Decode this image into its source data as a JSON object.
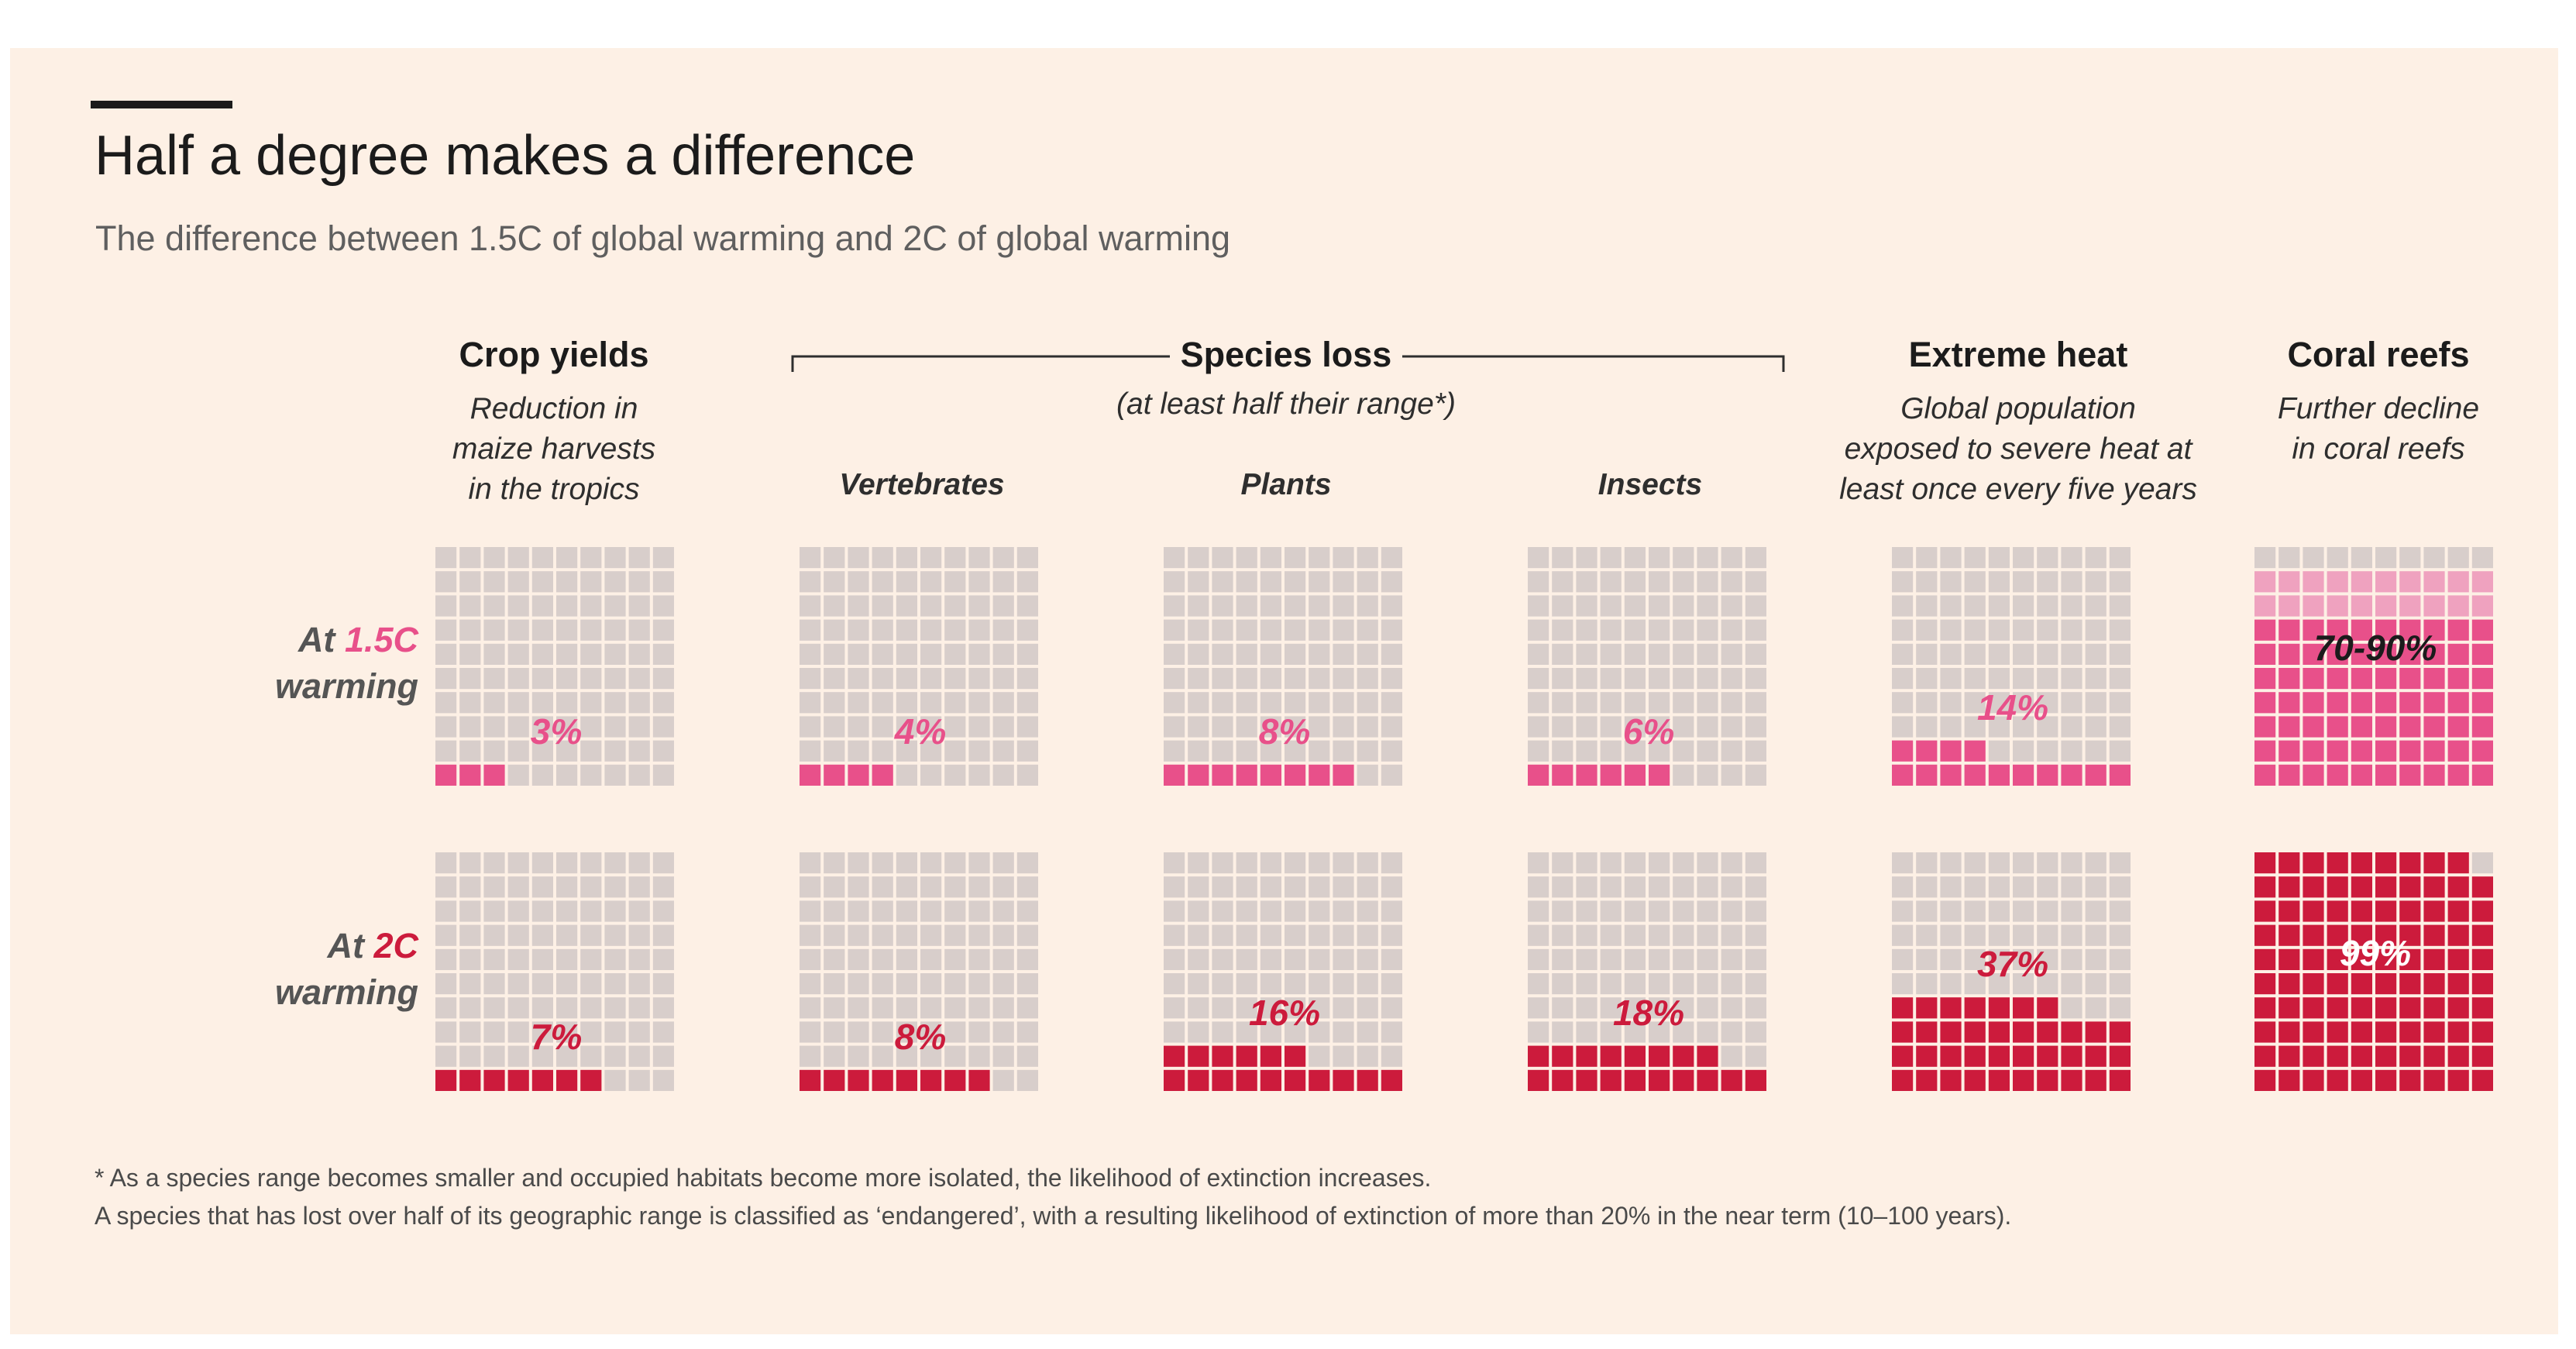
{
  "title": "Half a degree makes a difference",
  "subtitle": "The difference between 1.5C of global warming and 2C of global warming",
  "colors": {
    "background": "#fdf0e5",
    "cell_empty": "#d8cecb",
    "warming_1_5": "#e8508a",
    "warming_1_5_light": "#efa2bf",
    "warming_2": "#cc1b3c",
    "text": "#1b1b1b"
  },
  "groups": {
    "crop": {
      "title": "Crop yields",
      "subtitle_lines": [
        "Reduction in",
        "maize harvests",
        "in the tropics"
      ]
    },
    "species": {
      "title": "Species loss",
      "subtitle": "(at least half their range*)"
    },
    "heat": {
      "title": "Extreme heat",
      "subtitle_lines": [
        "Global population",
        "exposed to severe heat at",
        "least once every five years"
      ]
    },
    "coral": {
      "title": "Coral reefs",
      "subtitle_lines": [
        "Further decline",
        "in coral reefs"
      ]
    }
  },
  "columns": {
    "vertebrates": "Vertebrates",
    "plants": "Plants",
    "insects": "Insects"
  },
  "rows": {
    "r15": {
      "prefix": "At",
      "level": "1.5C",
      "suffix": "warming"
    },
    "r2": {
      "prefix": "At",
      "level": "2C",
      "suffix": "warming"
    }
  },
  "chart_data": {
    "type": "waffle",
    "grid": "10x10",
    "title": "Half a degree makes a difference",
    "subtitle": "The difference between 1.5C of global warming and 2C of global warming",
    "categories": [
      "Crop yields",
      "Vertebrates",
      "Plants",
      "Insects",
      "Extreme heat",
      "Coral reefs"
    ],
    "series": [
      {
        "name": "At 1.5C warming",
        "values": [
          3,
          4,
          8,
          6,
          14,
          80
        ],
        "labels": [
          "3%",
          "4%",
          "8%",
          "6%",
          "14%",
          "70-90%"
        ],
        "coral_range": [
          70,
          90
        ]
      },
      {
        "name": "At 2C warming",
        "values": [
          7,
          8,
          16,
          18,
          37,
          99
        ],
        "labels": [
          "7%",
          "8%",
          "16%",
          "18%",
          "37%",
          "99%"
        ]
      }
    ]
  },
  "footnotes": [
    "* As a species range becomes smaller and occupied habitats become more isolated, the likelihood of extinction increases.",
    "A species that has lost over half of its geographic range is classified as ‘endangered’, with a resulting likelihood of extinction of more than 20% in the near term (10–100 years)."
  ]
}
